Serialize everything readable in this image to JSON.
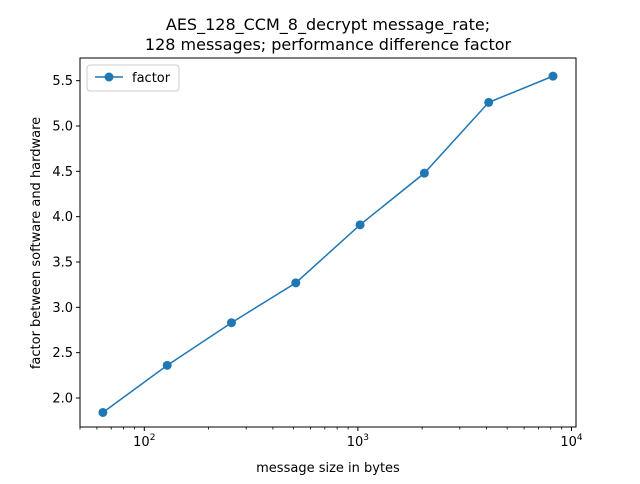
{
  "chart_data": {
    "type": "line",
    "title_line1": "AES_128_CCM_8_decrypt message_rate;",
    "title_line2": "128 messages; performance difference factor",
    "xlabel": "message size in bytes",
    "ylabel": "factor between software and hardware",
    "xscale": "log",
    "xlim": [
      50,
      10500
    ],
    "ylim": [
      1.68,
      5.75
    ],
    "x_ticks": [
      {
        "value": 100,
        "base": "10",
        "exp": "2"
      },
      {
        "value": 1000,
        "base": "10",
        "exp": "3"
      },
      {
        "value": 10000,
        "base": "10",
        "exp": "4"
      }
    ],
    "y_ticks": [
      "2.0",
      "2.5",
      "3.0",
      "3.5",
      "4.0",
      "4.5",
      "5.0",
      "5.5"
    ],
    "grid": false,
    "legend_position": "upper-left",
    "series": [
      {
        "name": "factor",
        "color": "#1f77b4",
        "x": [
          64,
          128,
          256,
          512,
          1024,
          2048,
          4096,
          8192
        ],
        "y": [
          1.84,
          2.36,
          2.83,
          3.27,
          3.91,
          4.48,
          5.26,
          5.55
        ]
      }
    ]
  }
}
